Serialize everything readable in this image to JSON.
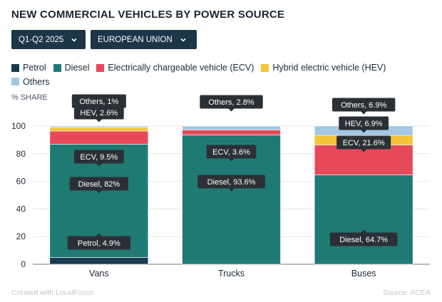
{
  "title": "NEW COMMERCIAL VEHICLES BY POWER SOURCE",
  "filters": {
    "period": "Q1-Q2 2025",
    "region": "EUROPEAN UNION"
  },
  "footer": {
    "credit": "Created with LocalFocus",
    "source": "Source: ACEA"
  },
  "colors": {
    "Petrol": "#1b3a52",
    "Diesel": "#1f7a74",
    "ECV": "#e8495a",
    "HEV": "#f3c33a",
    "Others": "#a4c8e3"
  },
  "chart_data": {
    "type": "bar",
    "stacked": true,
    "ylabel": "% SHARE",
    "ylim": [
      0,
      100
    ],
    "yticks": [
      0,
      20,
      40,
      60,
      80,
      100
    ],
    "categories": [
      "Vans",
      "Trucks",
      "Buses"
    ],
    "legend": [
      {
        "key": "Petrol",
        "label": "Petrol"
      },
      {
        "key": "Diesel",
        "label": "Diesel"
      },
      {
        "key": "ECV",
        "label": "Electrically chargeable vehicle (ECV)"
      },
      {
        "key": "HEV",
        "label": "Hybrid electric vehicle (HEV)"
      },
      {
        "key": "Others",
        "label": "Others"
      }
    ],
    "series": [
      {
        "name": "Petrol",
        "values": [
          4.9,
          0,
          0
        ]
      },
      {
        "name": "Diesel",
        "values": [
          82,
          93.6,
          64.7
        ]
      },
      {
        "name": "ECV",
        "values": [
          9.5,
          3.6,
          21.6
        ]
      },
      {
        "name": "HEV",
        "values": [
          2.6,
          0,
          6.9
        ]
      },
      {
        "name": "Others",
        "values": [
          1,
          2.8,
          6.9
        ]
      }
    ],
    "data_labels": [
      {
        "category": "Vans",
        "text": "Others, 1%"
      },
      {
        "category": "Vans",
        "text": "HEV, 2.6%"
      },
      {
        "category": "Vans",
        "text": "ECV, 9.5%"
      },
      {
        "category": "Vans",
        "text": "Diesel, 82%"
      },
      {
        "category": "Vans",
        "text": "Petrol, 4.9%"
      },
      {
        "category": "Trucks",
        "text": "Others, 2.8%"
      },
      {
        "category": "Trucks",
        "text": "ECV, 3.6%"
      },
      {
        "category": "Trucks",
        "text": "Diesel, 93.6%"
      },
      {
        "category": "Buses",
        "text": "Others, 6.9%"
      },
      {
        "category": "Buses",
        "text": "HEV, 6.9%"
      },
      {
        "category": "Buses",
        "text": "ECV, 21.6%"
      },
      {
        "category": "Buses",
        "text": "Diesel, 64.7%"
      }
    ]
  }
}
